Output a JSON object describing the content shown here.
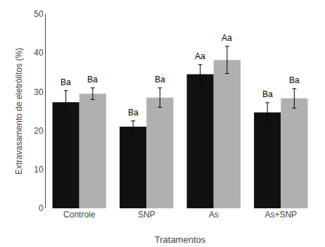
{
  "chart_data": {
    "type": "bar",
    "categories": [
      "Controle",
      "SNP",
      "As",
      "As+SNP"
    ],
    "series": [
      {
        "color": "#111111",
        "values": [
          27.3,
          21.0,
          34.5,
          24.7
        ],
        "errors": [
          3.0,
          1.5,
          2.5,
          2.5
        ],
        "labels": [
          "Ba",
          "Ba",
          "Aa",
          "Ba"
        ]
      },
      {
        "color": "#b0b0b0",
        "values": [
          29.5,
          28.5,
          38.2,
          28.3
        ],
        "errors": [
          1.5,
          2.5,
          3.5,
          2.5
        ],
        "labels": [
          "Ba",
          "Ba",
          "Aa",
          "Ba"
        ]
      }
    ],
    "xlabel": "Tratamentos",
    "ylabel": "Extravasamento de eletrólitos (%)",
    "ylim": [
      0,
      50
    ],
    "yticks": [
      0,
      10,
      20,
      30,
      40,
      50
    ],
    "grid": false
  }
}
